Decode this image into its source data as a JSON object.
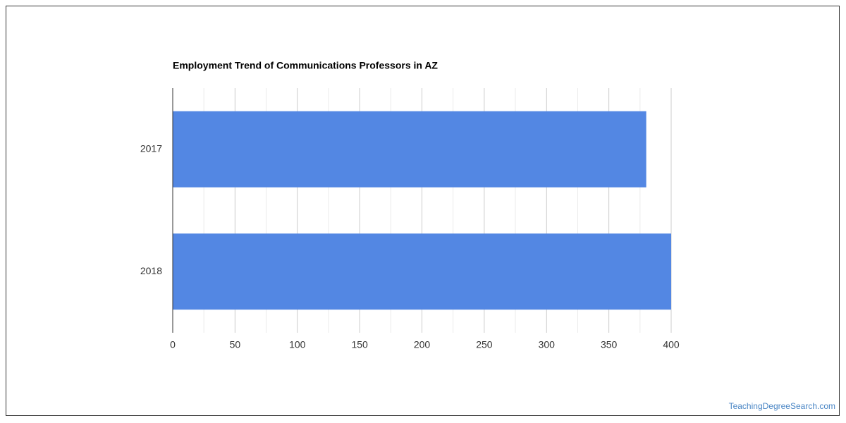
{
  "chart_data": {
    "type": "bar",
    "orientation": "horizontal",
    "title": "Employment Trend of Communications Professors in AZ",
    "categories": [
      "2017",
      "2018"
    ],
    "values": [
      380,
      400
    ],
    "color": "#5387e3",
    "xlim": [
      0,
      400
    ],
    "xticks": [
      0,
      50,
      100,
      150,
      200,
      250,
      300,
      350,
      400
    ],
    "xticks_minor": [
      25,
      75,
      125,
      175,
      225,
      275,
      325,
      375
    ],
    "grid": true
  },
  "watermark": "TeachingDegreeSearch.com"
}
